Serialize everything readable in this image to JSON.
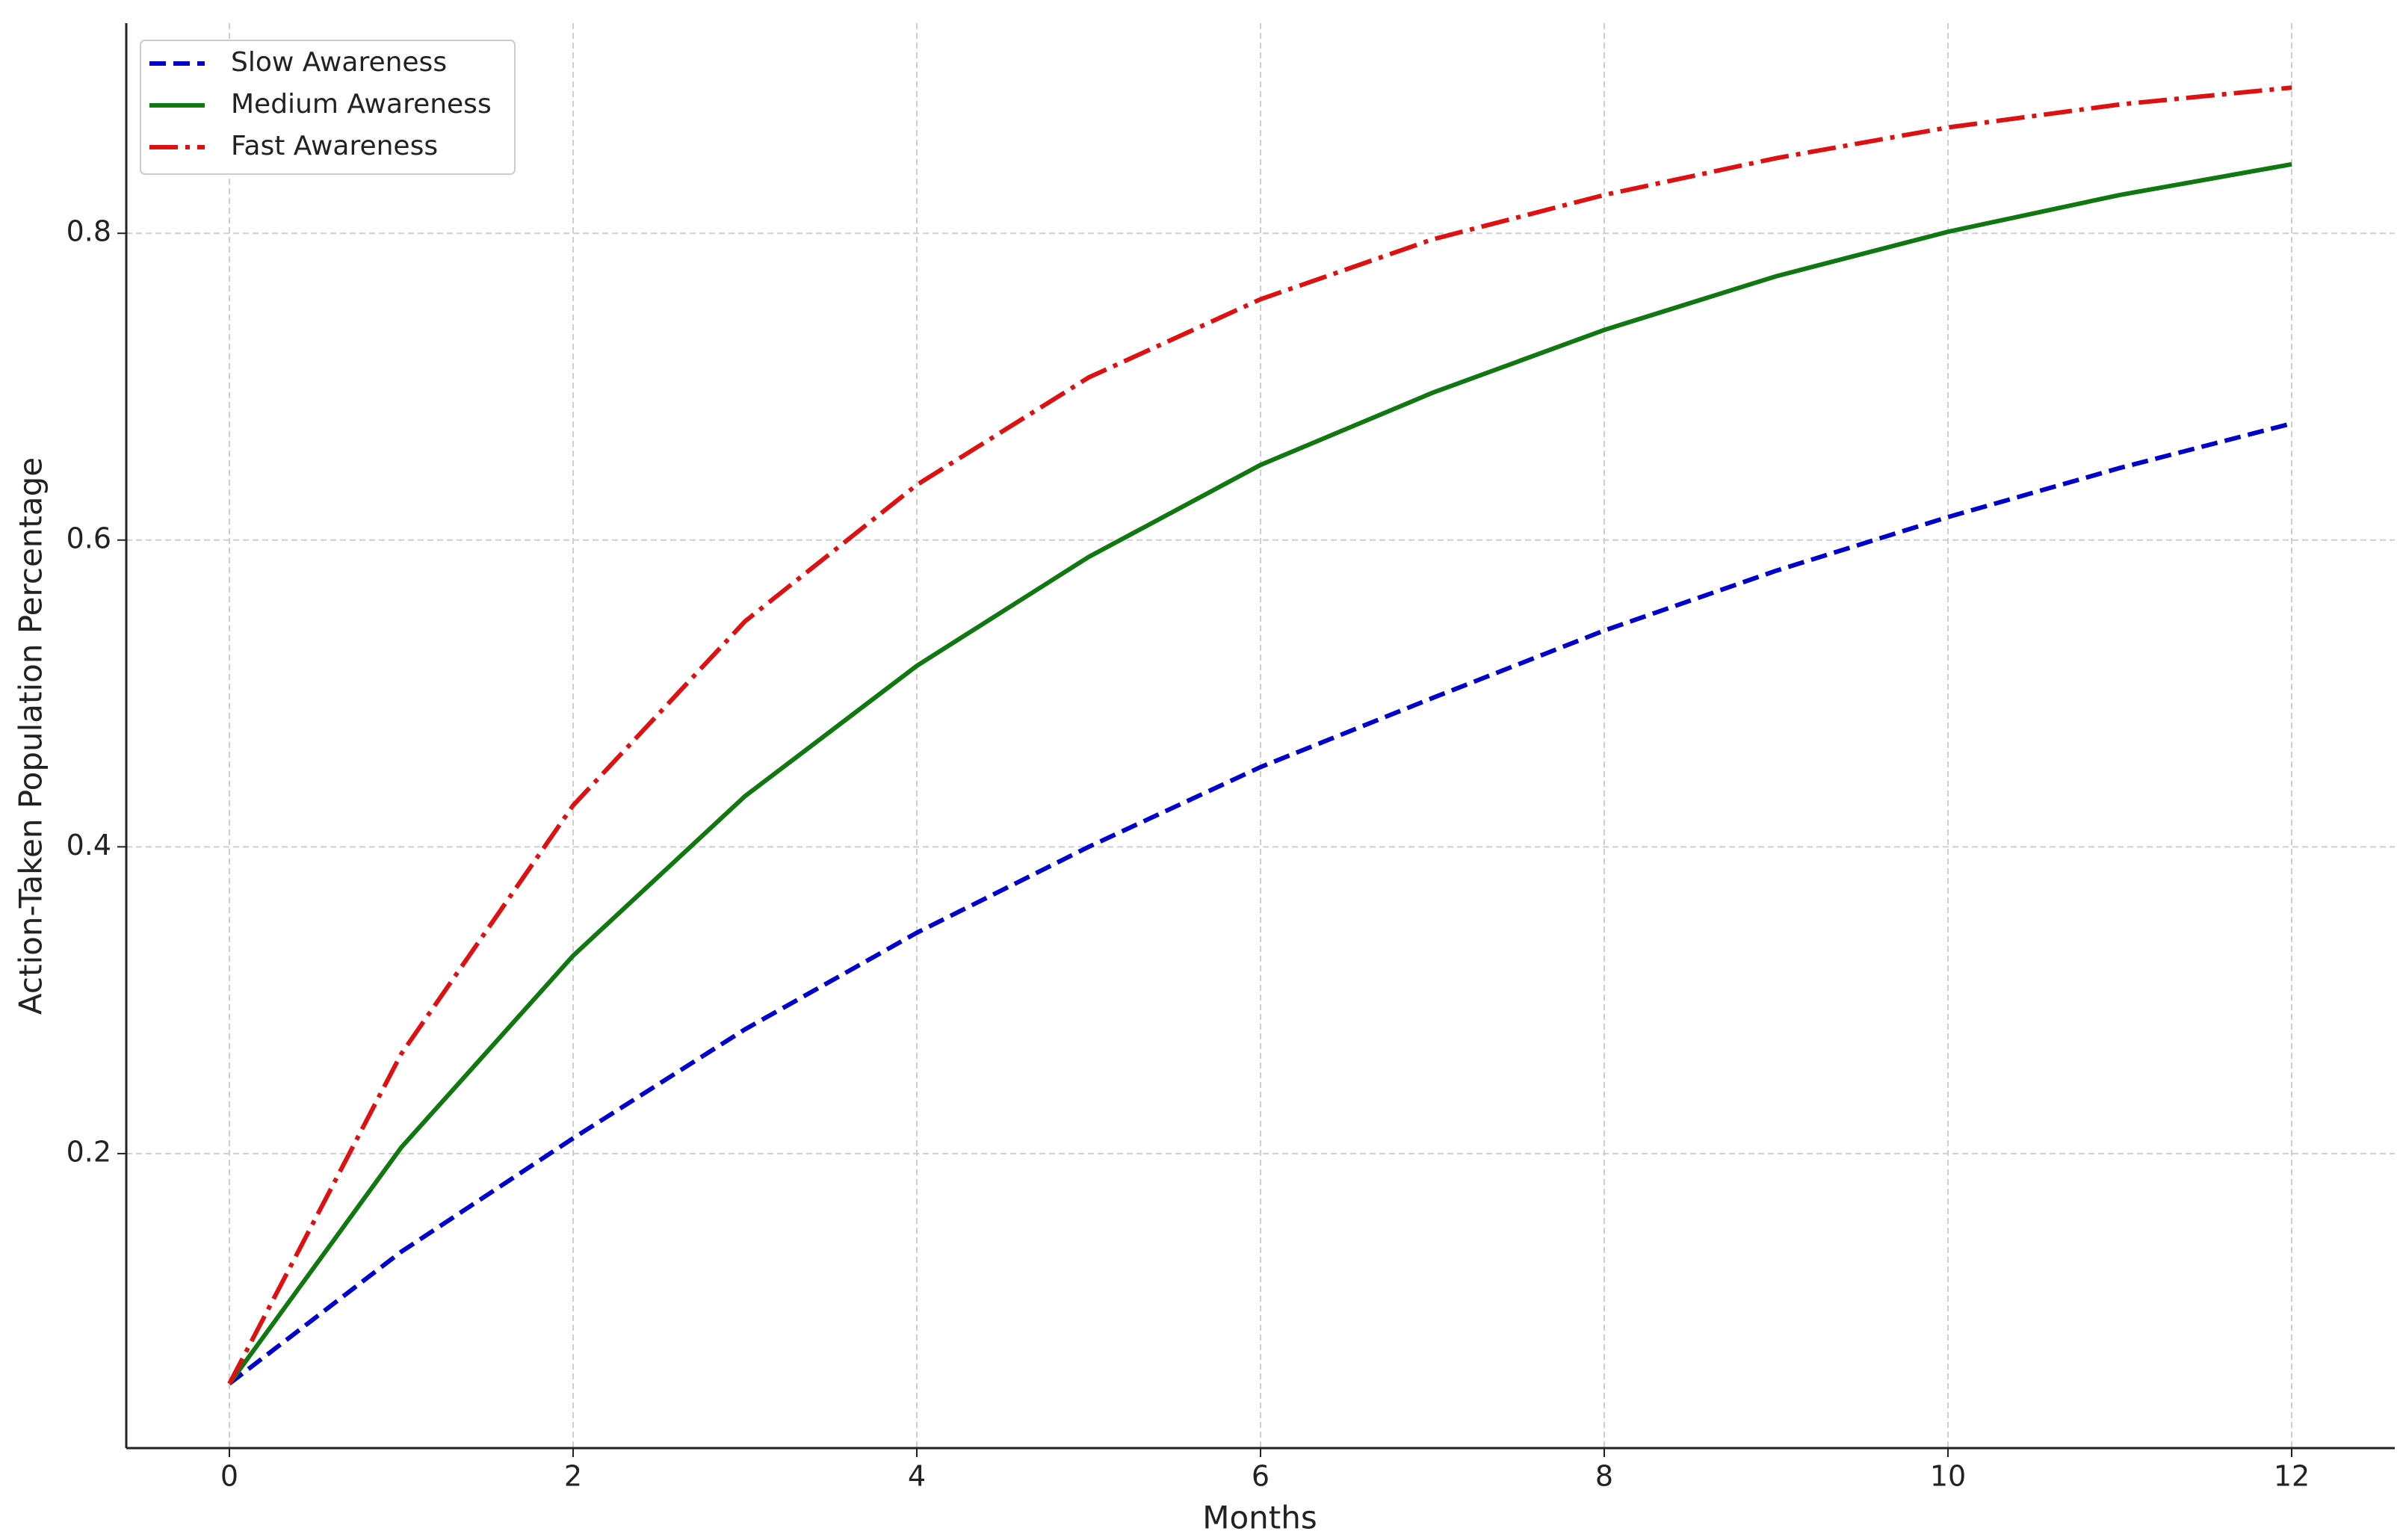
{
  "chart_data": {
    "type": "line",
    "x_label": "Months",
    "y_label": "Action-Taken Population Percentage",
    "x": [
      0,
      1,
      2,
      3,
      4,
      5,
      6,
      7,
      8,
      9,
      10,
      11,
      12
    ],
    "series": [
      {
        "name": "Slow Awareness",
        "color": "#0000cc",
        "linestyle": "dashed",
        "values": [
          0.05,
          0.136,
          0.21,
          0.281,
          0.344,
          0.4,
          0.452,
          0.497,
          0.541,
          0.58,
          0.615,
          0.647,
          0.676
        ]
      },
      {
        "name": "Medium Awareness",
        "color": "#117711",
        "linestyle": "solid",
        "values": [
          0.05,
          0.204,
          0.329,
          0.433,
          0.518,
          0.589,
          0.649,
          0.696,
          0.737,
          0.772,
          0.801,
          0.825,
          0.845
        ]
      },
      {
        "name": "Fast Awareness",
        "color": "#dd1111",
        "linestyle": "dashdot",
        "values": [
          0.05,
          0.265,
          0.427,
          0.547,
          0.636,
          0.706,
          0.757,
          0.796,
          0.825,
          0.849,
          0.869,
          0.884,
          0.895
        ]
      }
    ],
    "xlim": [
      -0.6,
      12.6
    ],
    "ylim": [
      0.008,
      0.937
    ],
    "xticks": [
      0,
      2,
      4,
      6,
      8,
      10,
      12
    ],
    "yticks": [
      0.2,
      0.4,
      0.6,
      0.8
    ],
    "grid": true,
    "legend": "upper-left"
  }
}
